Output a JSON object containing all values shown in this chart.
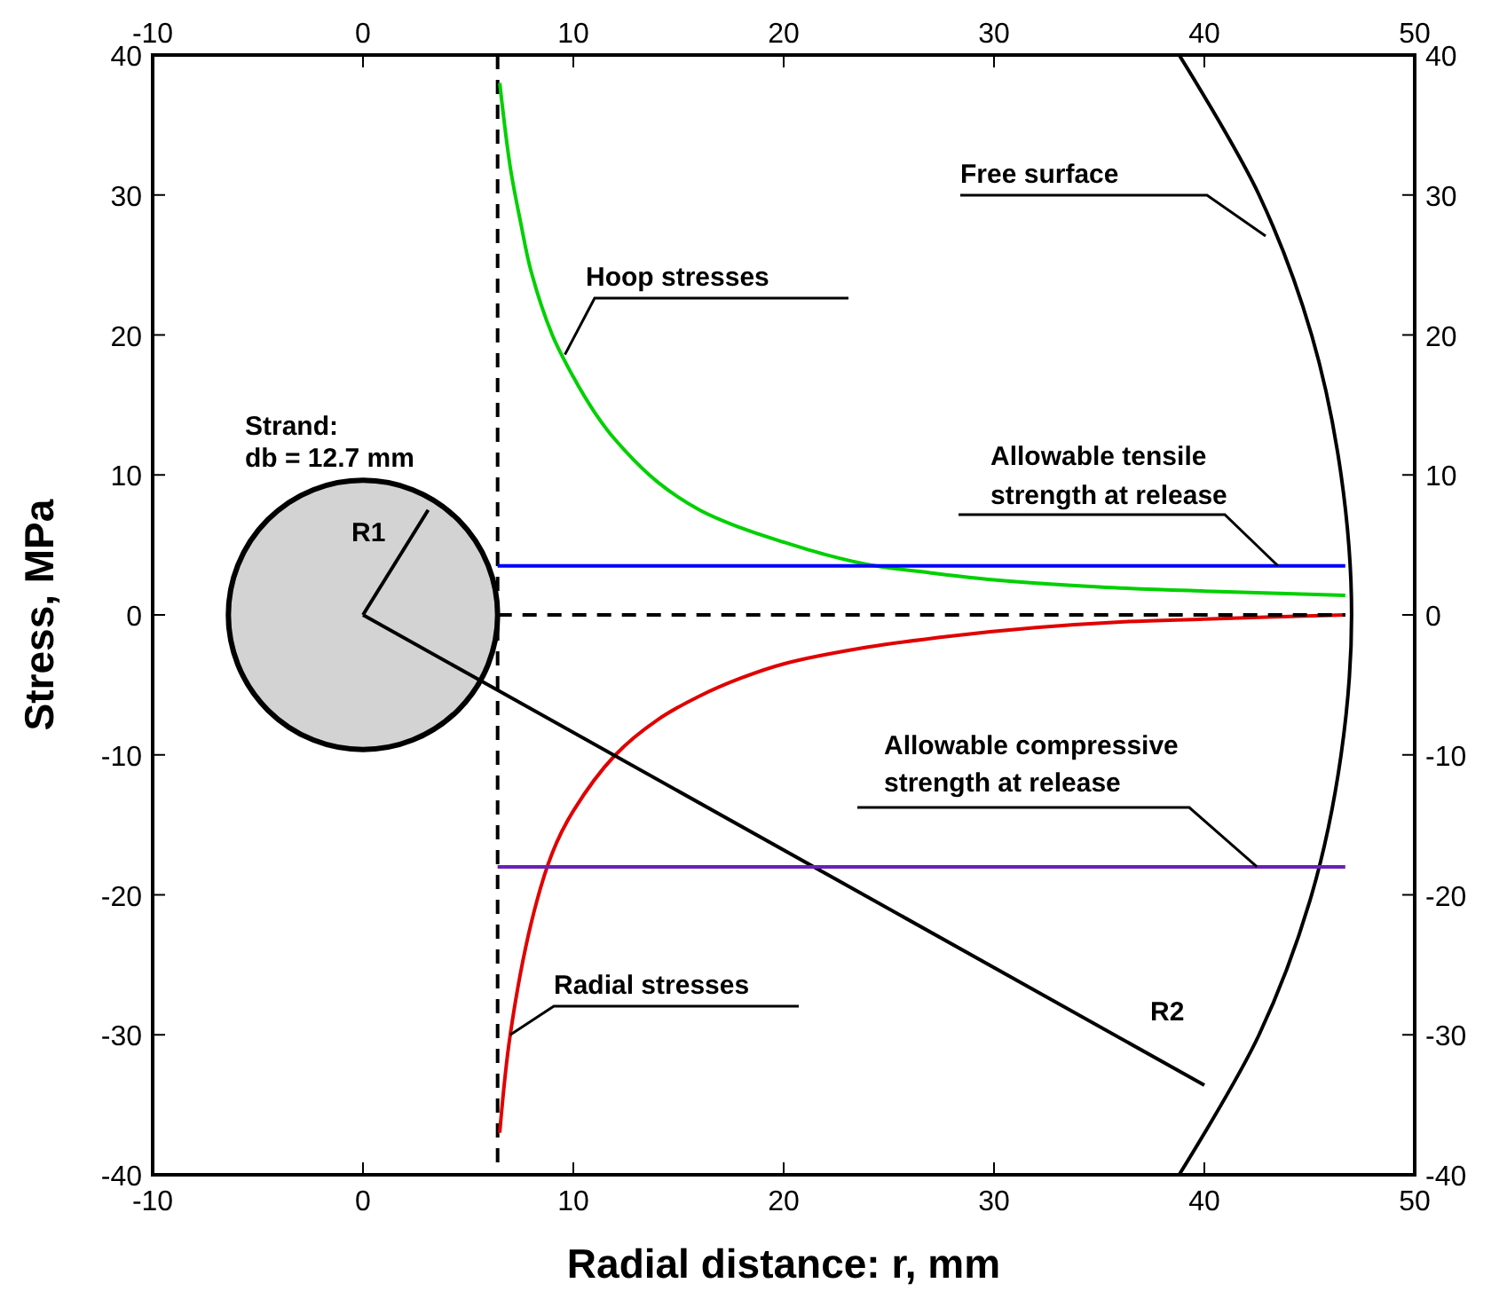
{
  "chart_data": {
    "type": "line",
    "xlabel": "Radial distance: r, mm",
    "ylabel": "Stress, MPa",
    "xlim": [
      -10,
      50
    ],
    "xticks": [
      -10,
      0,
      10,
      20,
      30,
      40,
      50
    ],
    "x2lim": [
      -10,
      50
    ],
    "x2ticks": [
      -10,
      0,
      10,
      20,
      30,
      40,
      50
    ],
    "ylim": [
      -40,
      40
    ],
    "yticks": [
      -40,
      -30,
      -20,
      -10,
      0,
      10,
      20,
      30,
      40
    ],
    "y2lim": [
      -40,
      40
    ],
    "y2ticks": [
      -40,
      -30,
      -20,
      -10,
      0,
      10,
      20,
      30,
      40
    ],
    "grid": false,
    "series": [
      {
        "color": "#00d000",
        "line_style": "solid",
        "x": [
          6.5,
          7,
          7.5,
          8,
          9,
          10,
          11,
          12,
          14,
          16,
          18,
          20,
          22,
          24,
          27,
          30,
          35,
          40,
          46.7
        ],
        "values": [
          38,
          32,
          28,
          24.5,
          20,
          17,
          14.5,
          12.5,
          9.5,
          7.5,
          6.2,
          5.2,
          4.3,
          3.6,
          3,
          2.5,
          2,
          1.7,
          1.4
        ]
      },
      {
        "color": "#e00000",
        "line_style": "solid",
        "x": [
          6.5,
          7,
          8,
          9,
          10,
          12,
          14,
          16,
          18,
          20,
          24,
          28,
          32,
          36,
          40,
          46.7
        ],
        "values": [
          -37,
          -30,
          -22,
          -17,
          -14,
          -10,
          -7.5,
          -5.8,
          -4.5,
          -3.5,
          -2.3,
          -1.5,
          -0.9,
          -0.5,
          -0.3,
          0
        ]
      },
      {
        "color": "#000000",
        "line_style": "solid",
        "x": [
          0,
          3.1
        ],
        "values": [
          0,
          7.5
        ]
      },
      {
        "color": "#000000",
        "line_style": "solid",
        "x": [
          0,
          40
        ],
        "values": [
          0,
          -33.6
        ]
      },
      {
        "color": "#000000",
        "line_style": "solid",
        "x": [
          38.8,
          42.6,
          45.1,
          46.5,
          47,
          46.5,
          45.1,
          42.6,
          38.8
        ],
        "values": [
          -40,
          -30,
          -20,
          -10,
          0,
          10,
          20,
          30,
          40
        ]
      },
      {
        "color": "#0000ff",
        "line_style": "solid",
        "x": [
          6.4,
          46.7
        ],
        "values": [
          3.5,
          3.5
        ]
      },
      {
        "color": "#6a1fb5",
        "line_style": "solid",
        "x": [
          6.4,
          46.7
        ],
        "values": [
          -18,
          -18
        ]
      },
      {
        "color": "#000000",
        "line_style": "dashed",
        "x": [
          6.4,
          46.7
        ],
        "values": [
          0,
          0
        ]
      }
    ],
    "ref_lines": [
      {
        "axis": "x",
        "value": 6.4,
        "color": "#000000",
        "line_style": "dashed"
      }
    ],
    "annotations": [
      "Strand:",
      "db = 12.7 mm",
      "R1",
      "R2",
      "Free surface",
      {
        "text": "Hoop stresses",
        "x": 9.6,
        "y": 18.6
      },
      "Allowable tensile",
      {
        "text": "strength at release",
        "x": 43.5,
        "y": 3.5
      },
      "Allowable compressive",
      {
        "text": "strength at release",
        "x": 42.5,
        "y": -18
      },
      {
        "text": "Radial stresses",
        "x": 7,
        "y": -30
      }
    ]
  }
}
